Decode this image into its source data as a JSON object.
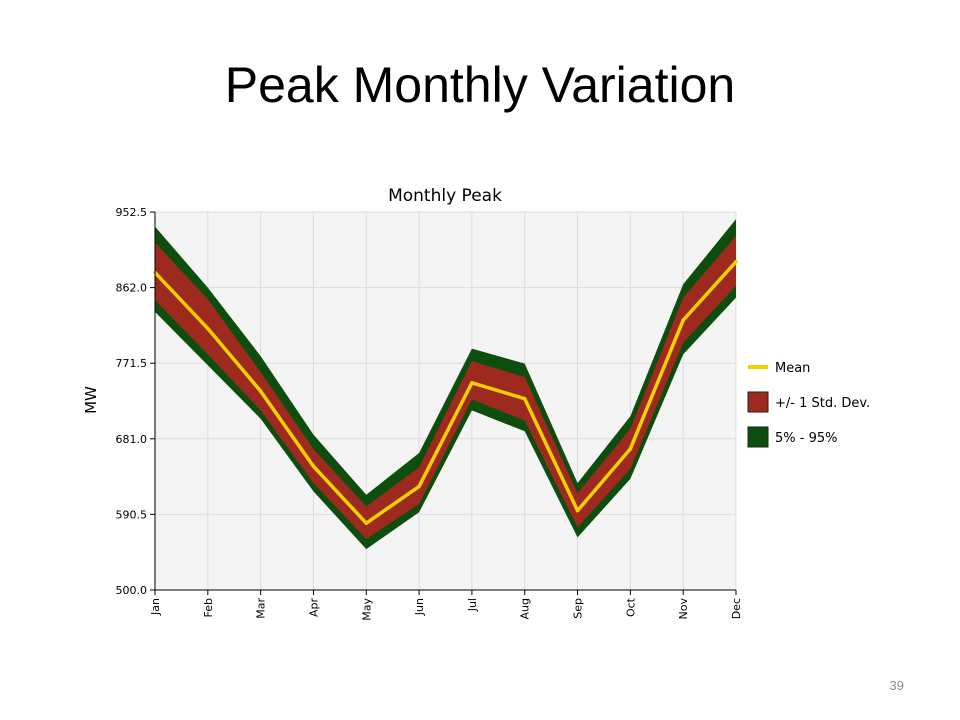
{
  "slide": {
    "title": "Peak Monthly Variation",
    "page_number": "39"
  },
  "chart_data": {
    "type": "area",
    "title": "Monthly Peak",
    "xlabel": "",
    "ylabel": "MW",
    "categories": [
      "Jan",
      "Feb",
      "Mar",
      "Apr",
      "May",
      "Jun",
      "Jul",
      "Aug",
      "Sep",
      "Oct",
      "Nov",
      "Dec"
    ],
    "yticks": [
      "500.0",
      "590.5",
      "681.0",
      "771.5",
      "862.0",
      "952.5"
    ],
    "ylim": [
      500.0,
      952.5
    ],
    "grid": true,
    "legend_position": "right",
    "series": [
      {
        "name": "5% - 95%",
        "kind": "band",
        "color": "#0d4d0d",
        "lower": [
          833,
          769,
          705,
          618,
          549,
          593,
          715,
          690,
          563,
          633,
          782,
          850
        ],
        "upper": [
          935,
          862,
          780,
          686,
          614,
          664,
          789,
          771,
          628,
          708,
          866,
          944
        ]
      },
      {
        "name": "+/- 1 Std. Dev.",
        "kind": "band",
        "color": "#9e2a1f",
        "lower": [
          847,
          782,
          715,
          628,
          561,
          603,
          728,
          703,
          575,
          645,
          796,
          864
        ],
        "upper": [
          916,
          848,
          761,
          669,
          600,
          647,
          774,
          755,
          616,
          693,
          850,
          924
        ]
      },
      {
        "name": "Mean",
        "kind": "line",
        "color": "#f5d000",
        "values": [
          880,
          813,
          738,
          648,
          580,
          624,
          748,
          729,
          595,
          669,
          823,
          893
        ]
      }
    ]
  },
  "colors": {
    "plot_background": "#f4f4f4",
    "grid": "#dcdcdc",
    "band_outer": "#0d4d0d",
    "band_inner": "#9e2a1f",
    "mean_line": "#f5d000"
  }
}
